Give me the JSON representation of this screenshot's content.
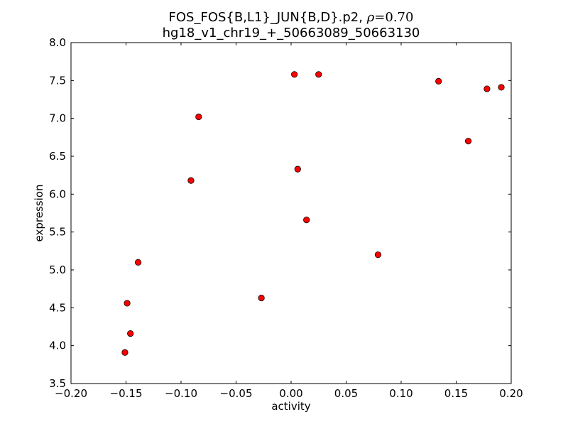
{
  "chart_data": {
    "type": "scatter",
    "title_line1": "FOS_FOS{B,L1}_JUN{B,D}.p2, ",
    "title_rho_symbol": "ρ",
    "title_rho_value": "=0.70",
    "title_line2": "hg18_v1_chr19_+_50663089_50663130",
    "xlabel": "activity",
    "ylabel": "expression",
    "xlim": [
      -0.2,
      0.2
    ],
    "ylim": [
      3.5,
      8.0
    ],
    "xticks": [
      "−0.20",
      "−0.15",
      "−0.10",
      "−0.05",
      "0.00",
      "0.05",
      "0.10",
      "0.15",
      "0.20"
    ],
    "xtick_values": [
      -0.2,
      -0.15,
      -0.1,
      -0.05,
      0.0,
      0.05,
      0.1,
      0.15,
      0.2
    ],
    "yticks": [
      "3.5",
      "4.0",
      "4.5",
      "5.0",
      "5.5",
      "6.0",
      "6.5",
      "7.0",
      "7.5",
      "8.0"
    ],
    "ytick_values": [
      3.5,
      4.0,
      4.5,
      5.0,
      5.5,
      6.0,
      6.5,
      7.0,
      7.5,
      8.0
    ],
    "grid": false,
    "marker_color": "#ff0000",
    "marker_edge_color": "#000000",
    "points": [
      {
        "x": 0.003,
        "y": 7.58
      },
      {
        "x": 0.025,
        "y": 7.58
      },
      {
        "x": 0.134,
        "y": 7.49
      },
      {
        "x": 0.178,
        "y": 7.39
      },
      {
        "x": 0.191,
        "y": 7.41
      },
      {
        "x": -0.084,
        "y": 7.02
      },
      {
        "x": 0.161,
        "y": 6.7
      },
      {
        "x": 0.006,
        "y": 6.33
      },
      {
        "x": -0.091,
        "y": 6.18
      },
      {
        "x": 0.014,
        "y": 5.66
      },
      {
        "x": 0.079,
        "y": 5.2
      },
      {
        "x": -0.139,
        "y": 5.1
      },
      {
        "x": -0.027,
        "y": 4.63
      },
      {
        "x": -0.149,
        "y": 4.56
      },
      {
        "x": -0.146,
        "y": 4.16
      },
      {
        "x": -0.151,
        "y": 3.91
      }
    ]
  }
}
